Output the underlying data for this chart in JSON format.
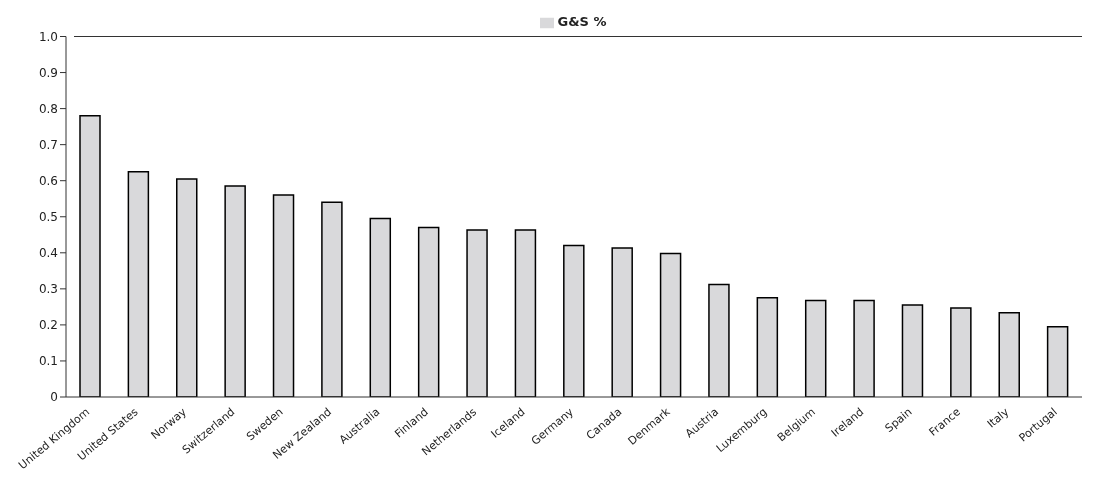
{
  "chart_data": {
    "type": "bar",
    "categories": [
      "United Kingdom",
      "United States",
      "Norway",
      "Switzerland",
      "Sweden",
      "New Zealand",
      "Australia",
      "Finland",
      "Netherlands",
      "Iceland",
      "Germany",
      "Canada",
      "Denmark",
      "Austria",
      "Luxemburg",
      "Belgium",
      "Ireland",
      "Spain",
      "France",
      "Italy",
      "Portugal"
    ],
    "series": [
      {
        "name": "G&S %",
        "color": "#d9d9db",
        "values": [
          0.78,
          0.625,
          0.605,
          0.585,
          0.56,
          0.54,
          0.495,
          0.47,
          0.463,
          0.463,
          0.42,
          0.413,
          0.398,
          0.312,
          0.275,
          0.268,
          0.268,
          0.255,
          0.247,
          0.234,
          0.195
        ]
      }
    ],
    "ylim": [
      0,
      1
    ],
    "yticks": [
      0,
      {
        "value": 0.1,
        "label": "0.1"
      },
      {
        "value": 0.2,
        "label": "0.2"
      },
      {
        "value": 0.3,
        "label": "0.3"
      },
      {
        "value": 0.4,
        "label": "0.4"
      },
      {
        "value": 0.5,
        "label": "0.5"
      },
      {
        "value": 0.6,
        "label": "0.6"
      },
      {
        "value": 0.7,
        "label": "0.7"
      },
      {
        "value": 0.8,
        "label": "0.8"
      },
      {
        "value": 0.9,
        "label": "0.9"
      },
      {
        "value": 1,
        "label": "1.0"
      }
    ],
    "grid": false,
    "legend": "top"
  }
}
